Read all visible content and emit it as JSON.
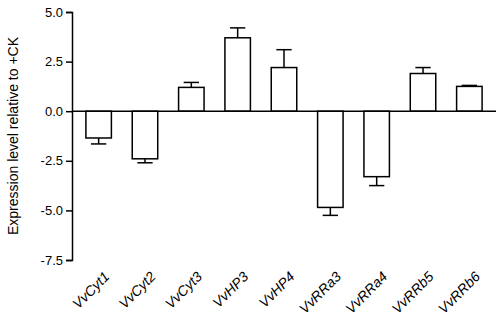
{
  "chart_data": {
    "type": "bar",
    "y_label": "Expression level relative to +CK",
    "categories": [
      "VvCyt1",
      "VvCyt2",
      "VvCyt3",
      "VvHP3",
      "VvHP4",
      "VvRRa3",
      "VvRRa4",
      "VvRRb5",
      "VvRRb6"
    ],
    "values": [
      -1.35,
      -2.4,
      1.2,
      3.7,
      2.2,
      -4.85,
      -3.3,
      1.9,
      1.25
    ],
    "errors": [
      0.3,
      0.2,
      0.25,
      0.5,
      0.9,
      0.4,
      0.45,
      0.3,
      0.05
    ],
    "color": "#ffffff",
    "ylim": [
      -7.5,
      5.0
    ],
    "yticks": [
      -7.5,
      {
        "value": -5,
        "label": "-5.0"
      },
      -2.5,
      {
        "value": 0,
        "label": "0.0"
      },
      2.5,
      {
        "value": 5,
        "label": "5.0"
      }
    ],
    "grid": false
  }
}
